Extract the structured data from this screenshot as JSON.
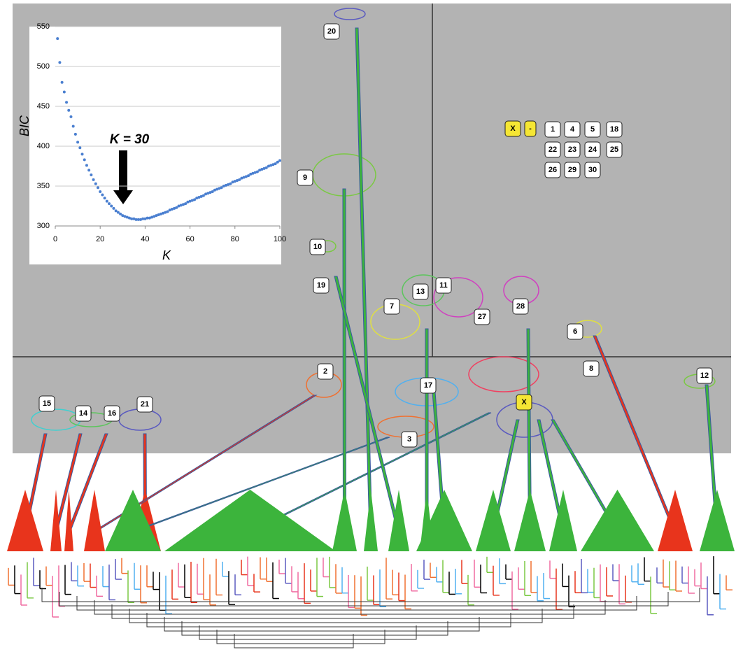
{
  "chart_data": {
    "type": "scatter",
    "x_label": "K",
    "y_label": "BIC",
    "annotation": "K = 30",
    "color": "#4a7fd0",
    "x": [
      1,
      2,
      3,
      4,
      5,
      6,
      7,
      8,
      9,
      10,
      11,
      12,
      13,
      14,
      15,
      16,
      17,
      18,
      19,
      20,
      21,
      22,
      23,
      24,
      25,
      26,
      27,
      28,
      29,
      30,
      31,
      32,
      33,
      34,
      35,
      36,
      37,
      38,
      39,
      40,
      41,
      42,
      43,
      44,
      45,
      46,
      47,
      48,
      49,
      50,
      51,
      52,
      53,
      54,
      55,
      56,
      57,
      58,
      59,
      60,
      61,
      62,
      63,
      64,
      65,
      66,
      67,
      68,
      69,
      70,
      71,
      72,
      73,
      74,
      75,
      76,
      77,
      78,
      79,
      80,
      81,
      82,
      83,
      84,
      85,
      86,
      87,
      88,
      89,
      90,
      91,
      92,
      93,
      94,
      95,
      96,
      97,
      98,
      99,
      100
    ],
    "values": [
      535,
      505,
      480,
      468,
      455,
      445,
      437,
      425,
      415,
      405,
      398,
      390,
      383,
      376,
      370,
      364,
      358,
      353,
      348,
      343,
      339,
      335,
      331,
      328,
      325,
      322,
      319,
      317,
      315,
      313,
      312,
      311,
      310,
      309,
      309,
      308,
      308,
      308,
      309,
      309,
      310,
      310,
      311,
      312,
      313,
      314,
      315,
      316,
      317,
      318,
      320,
      321,
      322,
      323,
      325,
      326,
      327,
      328,
      330,
      331,
      332,
      333,
      335,
      336,
      337,
      338,
      340,
      341,
      342,
      343,
      345,
      346,
      347,
      348,
      350,
      351,
      352,
      353,
      355,
      356,
      357,
      358,
      360,
      361,
      362,
      363,
      365,
      366,
      367,
      368,
      370,
      371,
      372,
      373,
      375,
      376,
      377,
      378,
      380,
      382
    ],
    "xlim": [
      0,
      100
    ],
    "xticks": [
      0,
      20,
      40,
      60,
      80,
      100
    ],
    "ylim": [
      300,
      550
    ],
    "yticks": [
      300,
      350,
      400,
      450,
      500,
      550
    ],
    "grid": true
  },
  "clusters": [
    "20",
    "9",
    "10",
    "19",
    "7",
    "13",
    "11",
    "27",
    "28",
    "6",
    "8",
    "12",
    "2",
    "17",
    "3",
    "15",
    "14",
    "16",
    "21",
    "X"
  ],
  "legend_boxes": [
    "X",
    "-",
    "1",
    "4",
    "5",
    "18",
    "22",
    "23",
    "24",
    "25",
    "26",
    "29",
    "30"
  ]
}
